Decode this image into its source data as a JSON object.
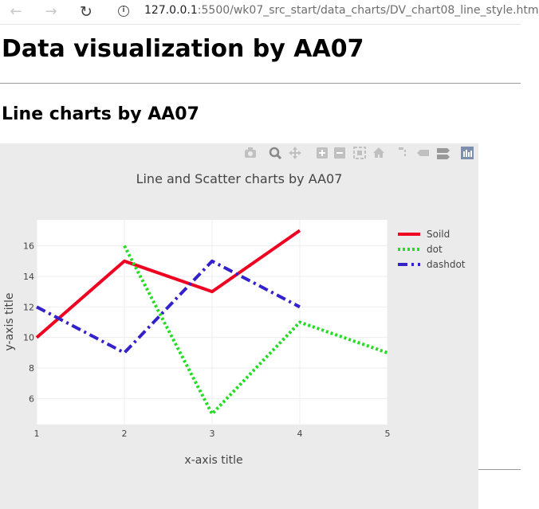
{
  "browser": {
    "url_host": "127.0.0.1",
    "url_rest": ":5500/wk07_src_start/data_charts/DV_chart08_line_style.htm"
  },
  "page": {
    "title": "Data visualization by AA07",
    "section_title": "Line charts by AA07"
  },
  "toolbar_icons": [
    "camera-icon",
    "zoom-icon",
    "pan-icon",
    "zoom-in-icon",
    "zoom-out-icon",
    "autoscale-icon",
    "home-icon",
    "spike-lines-icon",
    "hover-closest-icon",
    "hover-compare-icon",
    "plotly-logo-icon"
  ],
  "chart_data": {
    "type": "line",
    "title": "Line and Scatter charts by AA07",
    "xlabel": "x-axis title",
    "ylabel": "y-axis title",
    "xlim": [
      1,
      5
    ],
    "ylim": [
      4.3,
      17.7
    ],
    "xticks": [
      1,
      2,
      3,
      4,
      5
    ],
    "yticks": [
      6,
      8,
      10,
      12,
      14,
      16
    ],
    "grid": true,
    "legend_position": "right",
    "series": [
      {
        "name": "Soild",
        "x": [
          1,
          2,
          3,
          4
        ],
        "y": [
          10,
          15,
          13,
          17
        ],
        "color": "#f00020",
        "dash": "solid"
      },
      {
        "name": "dot",
        "x": [
          2,
          3,
          4,
          5
        ],
        "y": [
          16,
          5,
          11,
          9
        ],
        "color": "#22dd22",
        "dash": "dot"
      },
      {
        "name": "dashdot",
        "x": [
          1,
          2,
          3,
          4
        ],
        "y": [
          12,
          9,
          15,
          12
        ],
        "color": "#3322cc",
        "dash": "dashdot"
      }
    ]
  }
}
